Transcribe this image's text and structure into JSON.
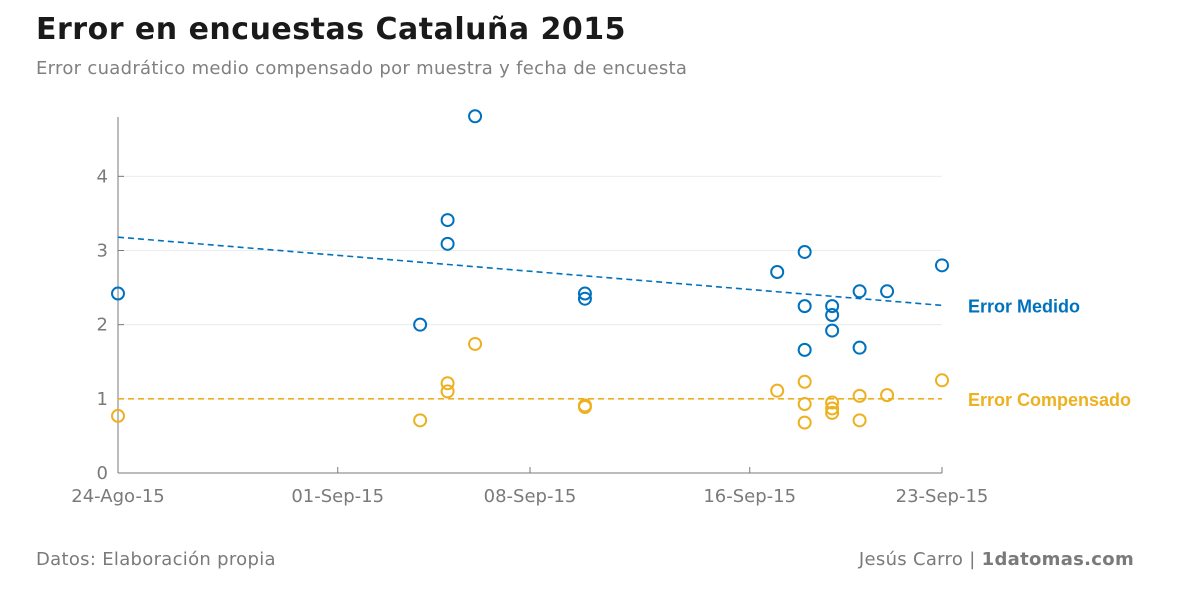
{
  "header": {
    "title": "Error en encuestas Cataluña 2015",
    "subtitle": "Error cuadrático medio compensado por muestra y fecha de encuesta"
  },
  "footer": {
    "source": "Datos: Elaboración propia",
    "author": "Jesús Carro",
    "separator": "|",
    "site": "1datomas.com"
  },
  "colors": {
    "medido": "#0072bd",
    "compensado": "#edb120",
    "axis": "#7a7a7a",
    "grid": "#ececec"
  },
  "chart_data": {
    "type": "scatter",
    "title": "Error en encuestas Cataluña 2015",
    "subtitle": "Error cuadrático medio compensado por muestra y fecha de encuesta",
    "x_axis": {
      "type": "date",
      "range": [
        "2015-08-24",
        "2015-09-23"
      ],
      "ticks": [
        "2015-08-24",
        "2015-09-01",
        "2015-09-08",
        "2015-09-16",
        "2015-09-23"
      ],
      "tick_labels": [
        "24-Ago-15",
        "01-Sep-15",
        "08-Sep-15",
        "16-Sep-15",
        "23-Sep-15"
      ]
    },
    "y_axis": {
      "range": [
        0,
        4.8
      ],
      "ticks": [
        0,
        1,
        2,
        3,
        4
      ],
      "tick_labels": [
        "0",
        "1",
        "2",
        "3",
        "4"
      ]
    },
    "grid": "horizontal",
    "series": [
      {
        "name": "Error Medido",
        "color": "#0072bd",
        "marker": "open-circle",
        "points": [
          [
            "2015-08-24",
            2.42
          ],
          [
            "2015-09-04",
            2.0
          ],
          [
            "2015-09-05",
            3.41
          ],
          [
            "2015-09-05",
            3.09
          ],
          [
            "2015-09-06",
            4.81
          ],
          [
            "2015-09-10",
            2.42
          ],
          [
            "2015-09-10",
            2.35
          ],
          [
            "2015-09-17",
            2.71
          ],
          [
            "2015-09-18",
            2.98
          ],
          [
            "2015-09-18",
            2.25
          ],
          [
            "2015-09-18",
            1.66
          ],
          [
            "2015-09-19",
            2.25
          ],
          [
            "2015-09-19",
            2.13
          ],
          [
            "2015-09-19",
            1.92
          ],
          [
            "2015-09-20",
            2.45
          ],
          [
            "2015-09-20",
            1.69
          ],
          [
            "2015-09-21",
            2.45
          ],
          [
            "2015-09-23",
            2.8
          ]
        ],
        "trend": {
          "style": "dashed",
          "from": [
            "2015-08-24",
            3.18
          ],
          "to": [
            "2015-09-23",
            2.26
          ]
        }
      },
      {
        "name": "Error Compensado",
        "color": "#edb120",
        "marker": "open-circle",
        "points": [
          [
            "2015-08-24",
            0.77
          ],
          [
            "2015-09-04",
            0.71
          ],
          [
            "2015-09-05",
            1.21
          ],
          [
            "2015-09-05",
            1.1
          ],
          [
            "2015-09-06",
            1.74
          ],
          [
            "2015-09-10",
            0.91
          ],
          [
            "2015-09-10",
            0.89
          ],
          [
            "2015-09-17",
            1.11
          ],
          [
            "2015-09-18",
            1.23
          ],
          [
            "2015-09-18",
            0.93
          ],
          [
            "2015-09-18",
            0.68
          ],
          [
            "2015-09-19",
            0.95
          ],
          [
            "2015-09-19",
            0.87
          ],
          [
            "2015-09-19",
            0.81
          ],
          [
            "2015-09-20",
            1.04
          ],
          [
            "2015-09-20",
            0.71
          ],
          [
            "2015-09-21",
            1.05
          ],
          [
            "2015-09-23",
            1.25
          ]
        ],
        "reference_line": {
          "style": "dashed",
          "y": 1.0
        }
      }
    ]
  }
}
